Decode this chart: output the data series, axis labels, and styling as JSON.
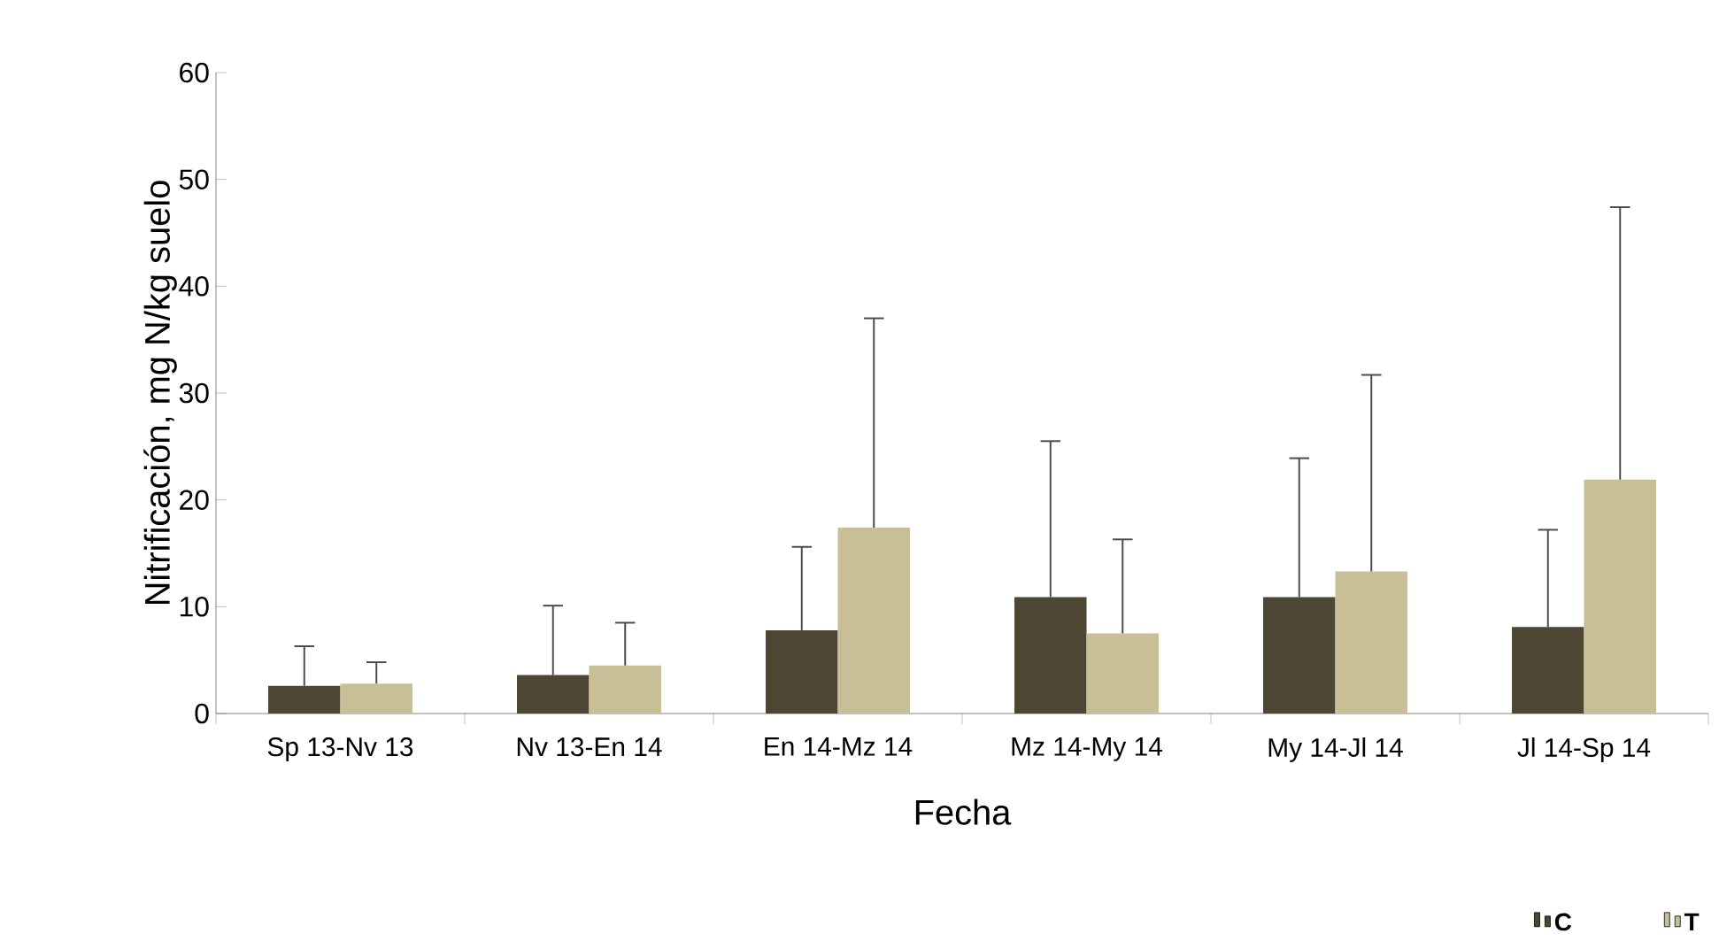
{
  "chart_data": {
    "type": "bar",
    "xlabel": "Fecha",
    "ylabel": "Nitrificación, mg N/kg suelo",
    "categories": [
      "Sp 13-Nv 13",
      "Nv 13-En 14",
      "En 14-Mz 14",
      "Mz 14-My 14",
      "My 14-Jl 14",
      "Jl 14-Sp 14"
    ],
    "series": [
      {
        "name": "C",
        "color": "#4d4632",
        "values": [
          2.6,
          3.6,
          7.8,
          10.9,
          10.9,
          8.1
        ],
        "errors": [
          [
            2.6,
            6.3
          ],
          [
            3.6,
            10.1
          ],
          [
            7.8,
            15.6
          ],
          [
            10.9,
            25.5
          ],
          [
            10.9,
            23.9
          ],
          [
            8.1,
            17.2
          ]
        ]
      },
      {
        "name": "T",
        "color": "#c8bf96",
        "values": [
          2.8,
          4.5,
          17.4,
          7.5,
          13.3,
          21.9
        ],
        "errors": [
          [
            2.8,
            4.8
          ],
          [
            4.5,
            8.5
          ],
          [
            17.4,
            37
          ],
          [
            7.5,
            16.3
          ],
          [
            13.3,
            31.7
          ],
          [
            21.9,
            47.4
          ]
        ]
      }
    ],
    "ylim": [
      0,
      60
    ],
    "yticks": [
      0,
      10,
      20,
      30,
      40,
      50,
      60
    ],
    "grid": false,
    "legend": "bottom right"
  }
}
